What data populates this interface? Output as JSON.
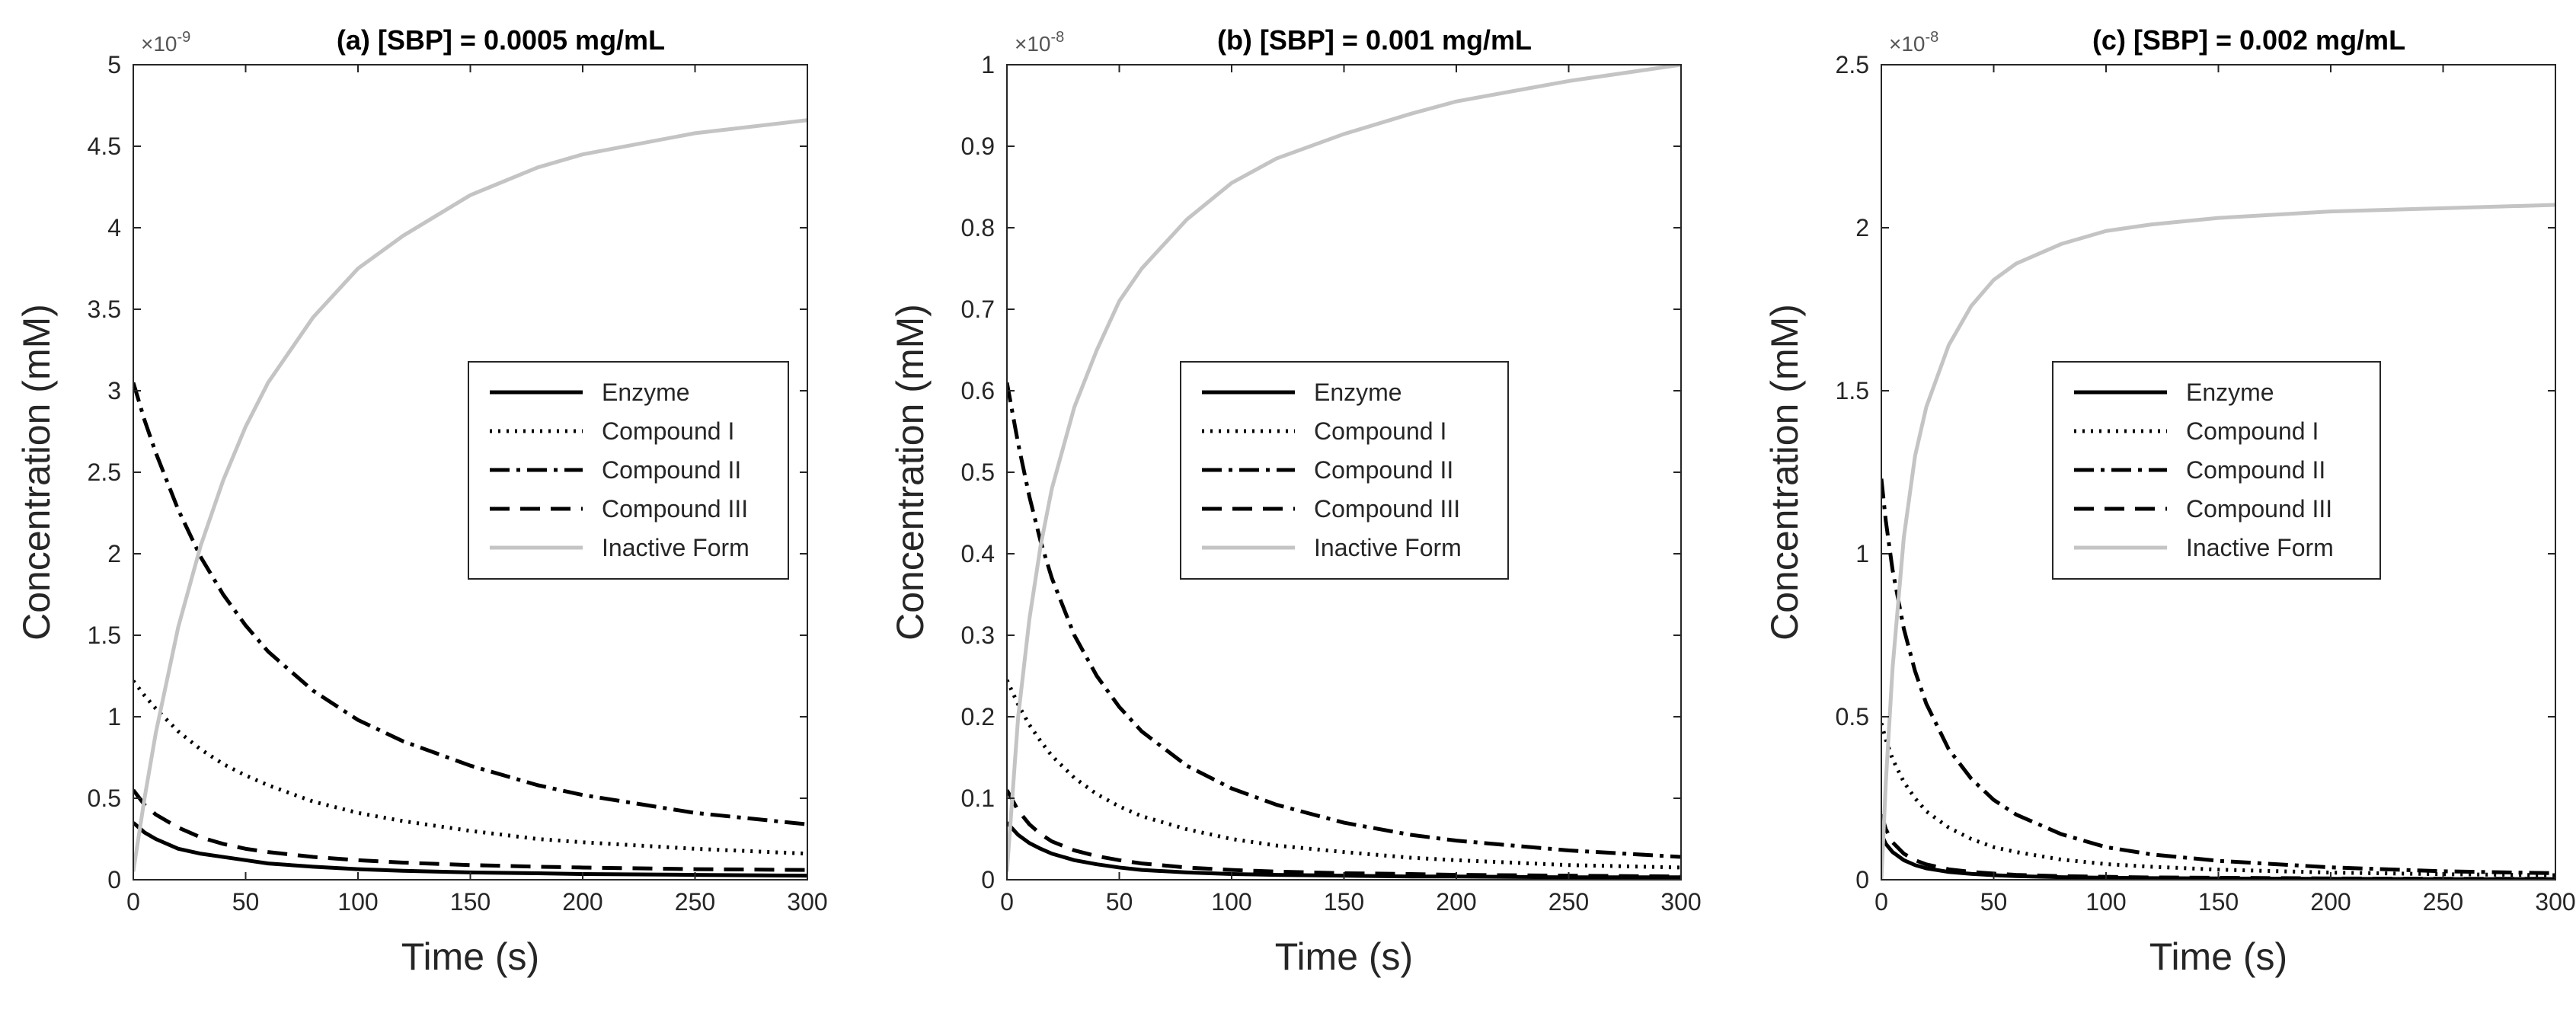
{
  "colors": {
    "enzyme": "#000000",
    "compound_i": "#000000",
    "compound_ii": "#000000",
    "compound_iii": "#000000",
    "inactive_form": "#c4c4c4",
    "axes": "#262626"
  },
  "chart_data": [
    {
      "type": "line",
      "title": "(a) [SBP] = 0.0005 mg/mL",
      "xlabel": "Time (s)",
      "ylabel": "Concentration (mM)",
      "exponent_base": "×10",
      "exponent_power": "-9",
      "xlim": [
        0,
        300
      ],
      "ylim": [
        0,
        5
      ],
      "xticks": [
        0,
        50,
        100,
        150,
        200,
        250,
        300
      ],
      "xtick_labels": [
        "0",
        "50",
        "100",
        "150",
        "200",
        "250",
        "300"
      ],
      "yticks": [
        0,
        0.5,
        1,
        1.5,
        2,
        2.5,
        3,
        3.5,
        4,
        4.5,
        5
      ],
      "ytick_labels": [
        "0",
        "0.5",
        "1",
        "1.5",
        "2",
        "2.5",
        "3",
        "3.5",
        "4",
        "4.5",
        "5"
      ],
      "grid": false,
      "legend_position": "center-right",
      "x": [
        0,
        5,
        10,
        20,
        30,
        40,
        50,
        60,
        80,
        100,
        120,
        150,
        180,
        200,
        250,
        300
      ],
      "series": [
        {
          "name": "Enzyme",
          "style": "solid",
          "values": [
            0.35,
            0.29,
            0.25,
            0.19,
            0.16,
            0.14,
            0.12,
            0.1,
            0.08,
            0.065,
            0.055,
            0.045,
            0.04,
            0.035,
            0.03,
            0.025
          ]
        },
        {
          "name": "Compound I",
          "style": "dotted",
          "values": [
            1.22,
            1.13,
            1.05,
            0.91,
            0.8,
            0.71,
            0.64,
            0.58,
            0.48,
            0.41,
            0.36,
            0.3,
            0.25,
            0.23,
            0.19,
            0.16
          ]
        },
        {
          "name": "Compound II",
          "style": "dashdot",
          "values": [
            3.05,
            2.82,
            2.62,
            2.27,
            1.98,
            1.75,
            1.56,
            1.4,
            1.16,
            0.98,
            0.85,
            0.7,
            0.58,
            0.52,
            0.41,
            0.34
          ]
        },
        {
          "name": "Compound III",
          "style": "dashed",
          "values": [
            0.55,
            0.46,
            0.4,
            0.32,
            0.26,
            0.22,
            0.19,
            0.17,
            0.14,
            0.12,
            0.105,
            0.09,
            0.08,
            0.075,
            0.065,
            0.06
          ]
        },
        {
          "name": "Inactive Form",
          "style": "solid",
          "values": [
            0.05,
            0.5,
            0.9,
            1.55,
            2.05,
            2.45,
            2.78,
            3.05,
            3.45,
            3.75,
            3.95,
            4.2,
            4.37,
            4.45,
            4.58,
            4.66
          ]
        }
      ]
    },
    {
      "type": "line",
      "title": "(b) [SBP] = 0.001 mg/mL",
      "xlabel": "Time (s)",
      "ylabel": "Concentration (mM)",
      "exponent_base": "×10",
      "exponent_power": "-8",
      "xlim": [
        0,
        300
      ],
      "ylim": [
        0,
        1
      ],
      "xticks": [
        0,
        50,
        100,
        150,
        200,
        250,
        300
      ],
      "xtick_labels": [
        "0",
        "50",
        "100",
        "150",
        "200",
        "250",
        "300"
      ],
      "yticks": [
        0,
        0.1,
        0.2,
        0.3,
        0.4,
        0.5,
        0.6,
        0.7,
        0.8,
        0.9,
        1
      ],
      "ytick_labels": [
        "0",
        "0.1",
        "0.2",
        "0.3",
        "0.4",
        "0.5",
        "0.6",
        "0.7",
        "0.8",
        "0.9",
        "1"
      ],
      "grid": false,
      "legend_position": "center-right",
      "x": [
        0,
        5,
        10,
        15,
        20,
        30,
        40,
        50,
        60,
        80,
        100,
        120,
        150,
        180,
        200,
        250,
        300
      ],
      "series": [
        {
          "name": "Enzyme",
          "style": "solid",
          "values": [
            0.07,
            0.055,
            0.045,
            0.038,
            0.032,
            0.024,
            0.019,
            0.015,
            0.012,
            0.009,
            0.007,
            0.006,
            0.005,
            0.004,
            0.004,
            0.003,
            0.003
          ]
        },
        {
          "name": "Compound I",
          "style": "dotted",
          "values": [
            0.245,
            0.215,
            0.19,
            0.17,
            0.152,
            0.125,
            0.105,
            0.09,
            0.078,
            0.062,
            0.05,
            0.042,
            0.034,
            0.027,
            0.024,
            0.018,
            0.015
          ]
        },
        {
          "name": "Compound II",
          "style": "dashdot",
          "values": [
            0.61,
            0.535,
            0.47,
            0.415,
            0.37,
            0.3,
            0.25,
            0.212,
            0.182,
            0.14,
            0.112,
            0.092,
            0.07,
            0.055,
            0.048,
            0.036,
            0.028
          ]
        },
        {
          "name": "Compound III",
          "style": "dashed",
          "values": [
            0.11,
            0.085,
            0.068,
            0.056,
            0.047,
            0.036,
            0.029,
            0.024,
            0.02,
            0.015,
            0.012,
            0.01,
            0.008,
            0.007,
            0.006,
            0.005,
            0.004
          ]
        },
        {
          "name": "Inactive Form",
          "style": "solid",
          "values": [
            0.01,
            0.2,
            0.32,
            0.41,
            0.48,
            0.58,
            0.65,
            0.71,
            0.75,
            0.81,
            0.855,
            0.885,
            0.915,
            0.94,
            0.955,
            0.98,
            1.0
          ]
        }
      ]
    },
    {
      "type": "line",
      "title": "(c) [SBP] = 0.002 mg/mL",
      "xlabel": "Time (s)",
      "ylabel": "Concentration (mM)",
      "exponent_base": "×10",
      "exponent_power": "-8",
      "xlim": [
        0,
        300
      ],
      "ylim": [
        0,
        2.5
      ],
      "xticks": [
        0,
        50,
        100,
        150,
        200,
        250,
        300
      ],
      "xtick_labels": [
        "0",
        "50",
        "100",
        "150",
        "200",
        "250",
        "300"
      ],
      "yticks": [
        0,
        0.5,
        1,
        1.5,
        2,
        2.5
      ],
      "ytick_labels": [
        "0",
        "0.5",
        "1",
        "1.5",
        "2",
        "2.5"
      ],
      "grid": false,
      "legend_position": "center-right",
      "x": [
        0,
        2,
        5,
        10,
        15,
        20,
        30,
        40,
        50,
        60,
        80,
        100,
        120,
        150,
        200,
        250,
        300
      ],
      "series": [
        {
          "name": "Enzyme",
          "style": "solid",
          "values": [
            0.14,
            0.11,
            0.085,
            0.06,
            0.045,
            0.035,
            0.024,
            0.018,
            0.014,
            0.011,
            0.008,
            0.006,
            0.005,
            0.004,
            0.003,
            0.002,
            0.002
          ]
        },
        {
          "name": "Compound I",
          "style": "dotted",
          "values": [
            0.48,
            0.43,
            0.37,
            0.3,
            0.25,
            0.21,
            0.16,
            0.125,
            0.1,
            0.085,
            0.062,
            0.048,
            0.04,
            0.031,
            0.022,
            0.017,
            0.014
          ]
        },
        {
          "name": "Compound II",
          "style": "dashdot",
          "values": [
            1.23,
            1.1,
            0.95,
            0.77,
            0.64,
            0.54,
            0.4,
            0.31,
            0.245,
            0.2,
            0.14,
            0.1,
            0.078,
            0.058,
            0.038,
            0.026,
            0.02
          ]
        },
        {
          "name": "Compound III",
          "style": "dashed",
          "values": [
            0.2,
            0.155,
            0.115,
            0.08,
            0.06,
            0.047,
            0.032,
            0.024,
            0.019,
            0.015,
            0.011,
            0.009,
            0.007,
            0.006,
            0.004,
            0.003,
            0.003
          ]
        },
        {
          "name": "Inactive Form",
          "style": "solid",
          "values": [
            0.0,
            0.3,
            0.65,
            1.05,
            1.3,
            1.45,
            1.64,
            1.76,
            1.84,
            1.89,
            1.95,
            1.99,
            2.01,
            2.03,
            2.05,
            2.06,
            2.07
          ]
        }
      ]
    }
  ]
}
